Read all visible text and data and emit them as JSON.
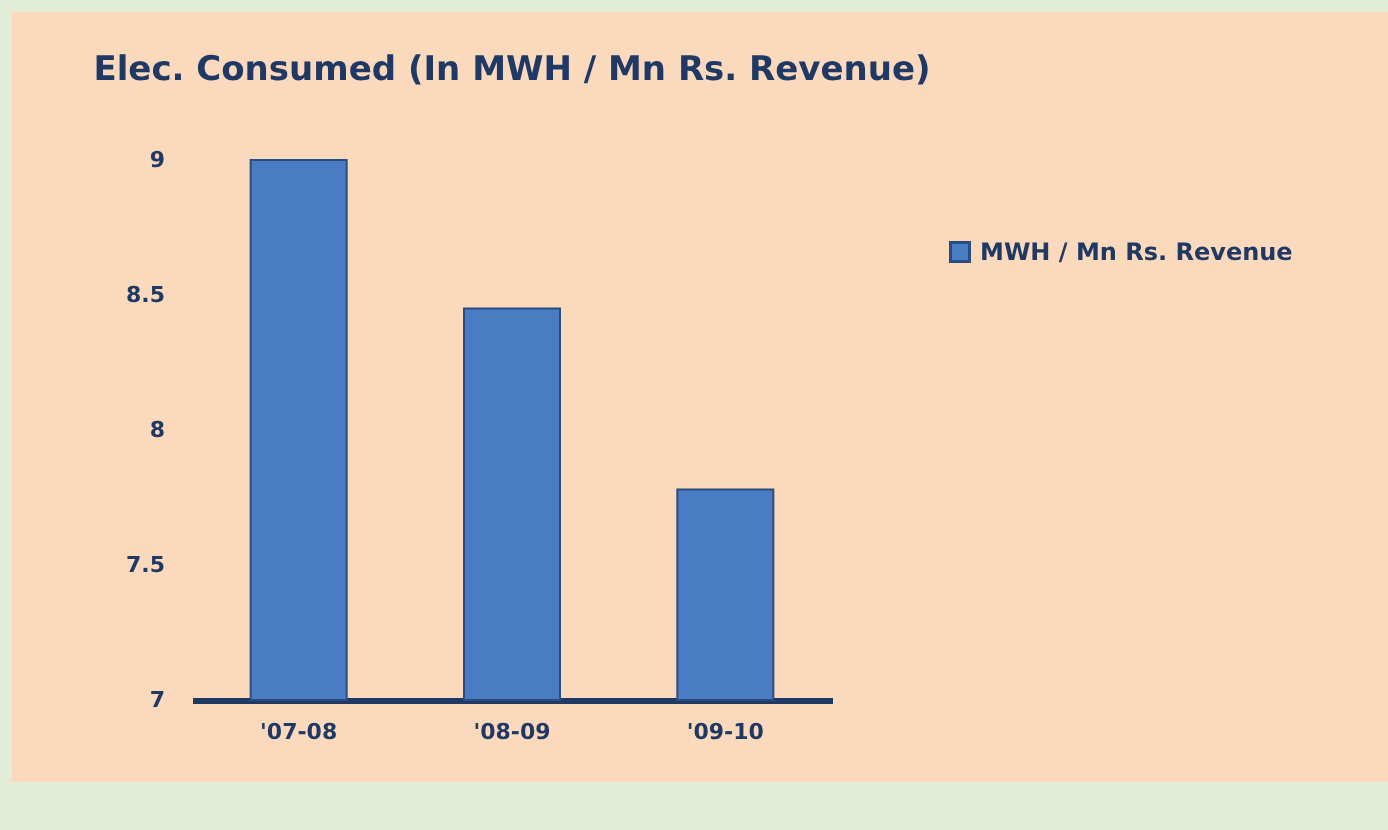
{
  "chart_data": {
    "type": "bar",
    "title": "Elec. Consumed (In MWH / Mn Rs. Revenue)",
    "categories": [
      "'07-08",
      "'08-09",
      "'09-10"
    ],
    "series": [
      {
        "name": "MWH / Mn Rs. Revenue",
        "color": "#4a7cc4",
        "values": [
          9.0,
          8.45,
          7.78
        ]
      }
    ],
    "ylim": [
      7,
      9
    ],
    "yticks": [
      7,
      7.5,
      8,
      8.5,
      9
    ],
    "grid": false,
    "legend": "right"
  }
}
